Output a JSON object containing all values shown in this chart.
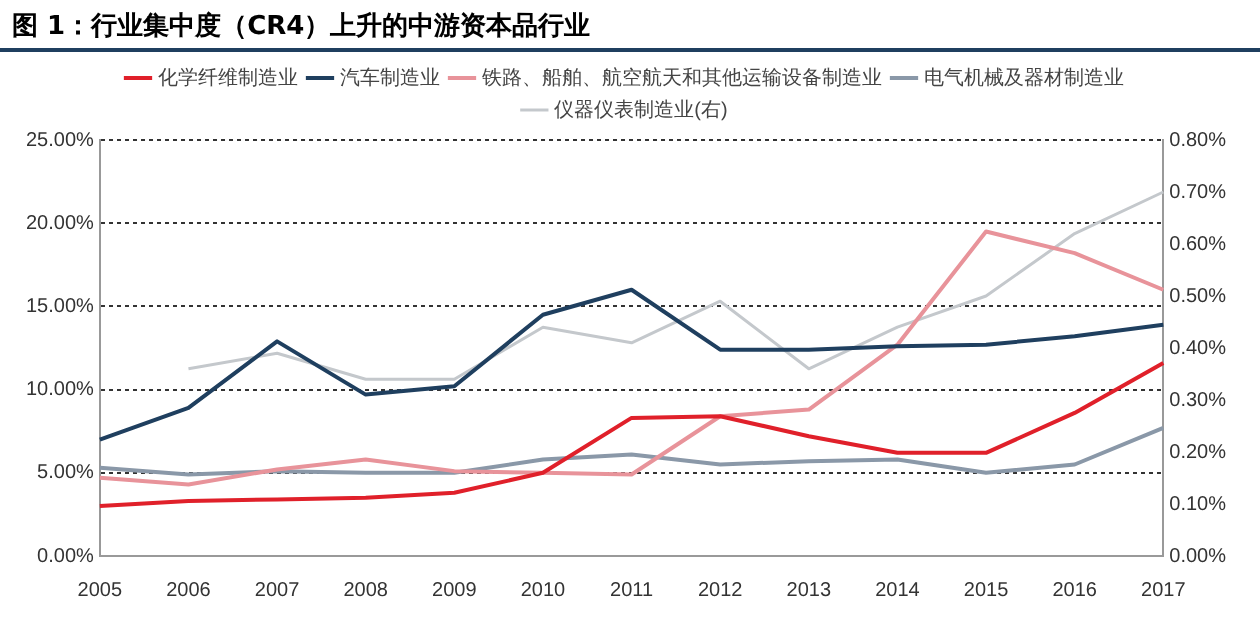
{
  "chart_data": {
    "type": "line",
    "title": "图 1：行业集中度（CR4）上升的中游资本品行业",
    "categories": [
      "2005",
      "2006",
      "2007",
      "2008",
      "2009",
      "2010",
      "2011",
      "2012",
      "2013",
      "2014",
      "2015",
      "2016",
      "2017"
    ],
    "series": [
      {
        "name": "化学纤维制造业",
        "color": "#e0202a",
        "values": [
          3.0,
          3.3,
          3.4,
          3.5,
          3.8,
          5.0,
          8.3,
          8.4,
          7.2,
          6.2,
          6.2,
          8.6,
          11.6
        ]
      },
      {
        "name": "汽车制造业",
        "color": "#1f3f5f",
        "values": [
          7.0,
          8.9,
          12.9,
          9.7,
          10.2,
          14.5,
          16.0,
          12.4,
          12.4,
          12.6,
          12.7,
          13.2,
          13.9
        ]
      },
      {
        "name": "铁路、船舶、航空航天和其他运输设备制造业",
        "color": "#e8939a",
        "values": [
          4.7,
          4.3,
          5.2,
          5.8,
          5.1,
          5.0,
          4.9,
          8.4,
          8.8,
          12.7,
          19.5,
          18.2,
          16.0
        ]
      },
      {
        "name": "电气机械及器材制造业",
        "color": "#8a98a8",
        "values": [
          5.3,
          4.9,
          5.1,
          5.0,
          5.0,
          5.8,
          6.1,
          5.5,
          5.7,
          5.8,
          5.0,
          5.5,
          7.7
        ]
      },
      {
        "name": "仪器仪表制造业(右)",
        "color": "#c4c8cc",
        "axis": "y2",
        "values": [
          null,
          0.36,
          0.39,
          0.34,
          0.34,
          0.44,
          0.41,
          0.49,
          0.36,
          0.44,
          0.5,
          0.62,
          0.7
        ]
      }
    ],
    "ylim": [
      0,
      25
    ],
    "yticks": [
      {
        "value": 0,
        "label": "0.00%"
      },
      {
        "value": 5,
        "label": "5.00%"
      },
      {
        "value": 10,
        "label": "10.00%"
      },
      {
        "value": 15,
        "label": "15.00%"
      },
      {
        "value": 20,
        "label": "20.00%"
      },
      {
        "value": 25,
        "label": "25.00%"
      }
    ],
    "y2lim": [
      0,
      0.8
    ],
    "y2ticks": [
      {
        "value": 0,
        "label": "0.00%"
      },
      {
        "value": 0.1,
        "label": "0.10%"
      },
      {
        "value": 0.2,
        "label": "0.20%"
      },
      {
        "value": 0.3,
        "label": "0.30%"
      },
      {
        "value": 0.4,
        "label": "0.40%"
      },
      {
        "value": 0.5,
        "label": "0.50%"
      },
      {
        "value": 0.6,
        "label": "0.60%"
      },
      {
        "value": 0.7,
        "label": "0.70%"
      },
      {
        "value": 0.8,
        "label": "0.80%"
      }
    ],
    "grid": "y",
    "legend": "top",
    "marker": "none",
    "line_style": "solid"
  }
}
